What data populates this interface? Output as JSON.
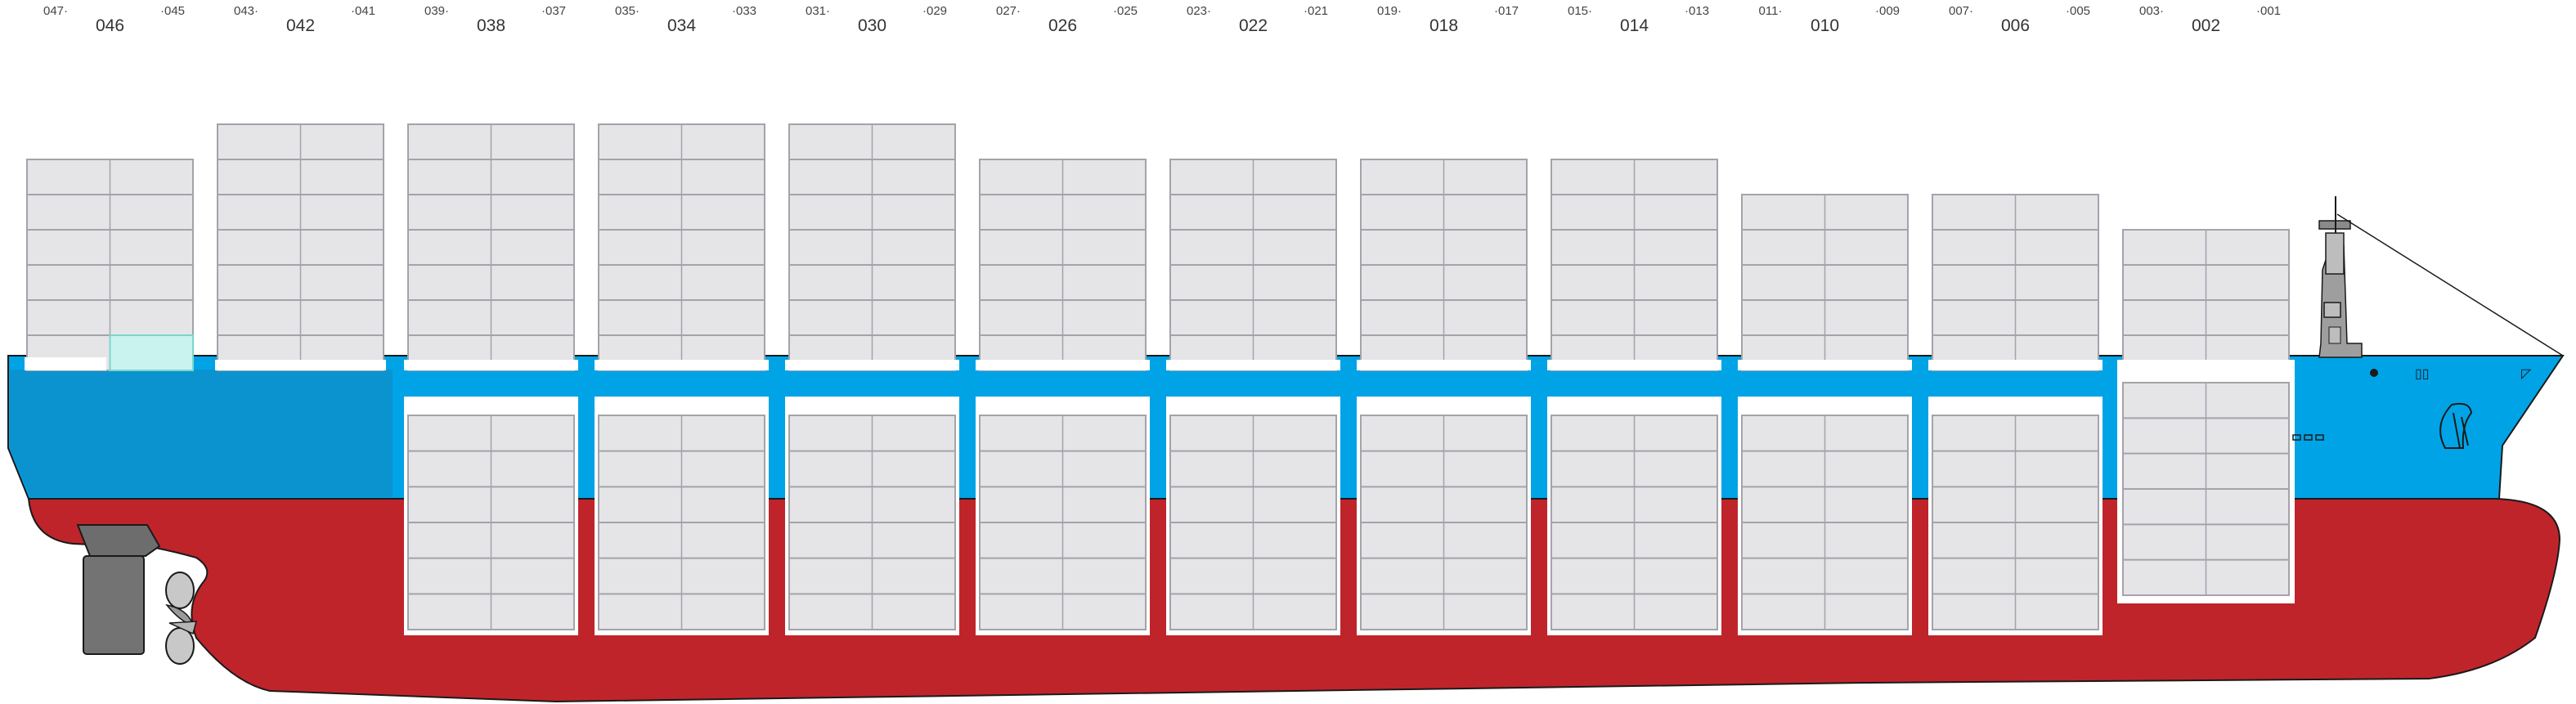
{
  "colors": {
    "hull_red": "#c0242b",
    "hull_blue": "#00a3e6",
    "container_fill": "#e5e5e8",
    "container_stroke": "#a3a3aa",
    "highlight_fill": "#c9f3ee",
    "highlight_stroke": "#7ad6cc",
    "outline": "#1a1a1a"
  },
  "bays": [
    {
      "id": "bay-046",
      "label": "046",
      "aft": "047",
      "fwd": "045",
      "deck_tiers": 6,
      "hold_tiers": 0,
      "highlight_cell": "deck-bottom-fwd"
    },
    {
      "id": "bay-042",
      "label": "042",
      "aft": "043",
      "fwd": "041",
      "deck_tiers": 7,
      "hold_tiers": 0
    },
    {
      "id": "bay-038",
      "label": "038",
      "aft": "039",
      "fwd": "037",
      "deck_tiers": 7,
      "hold_tiers": 6
    },
    {
      "id": "bay-034",
      "label": "034",
      "aft": "035",
      "fwd": "033",
      "deck_tiers": 7,
      "hold_tiers": 6
    },
    {
      "id": "bay-030",
      "label": "030",
      "aft": "031",
      "fwd": "029",
      "deck_tiers": 7,
      "hold_tiers": 6
    },
    {
      "id": "bay-026",
      "label": "026",
      "aft": "027",
      "fwd": "025",
      "deck_tiers": 6,
      "hold_tiers": 6
    },
    {
      "id": "bay-022",
      "label": "022",
      "aft": "023",
      "fwd": "021",
      "deck_tiers": 6,
      "hold_tiers": 6
    },
    {
      "id": "bay-018",
      "label": "018",
      "aft": "019",
      "fwd": "017",
      "deck_tiers": 6,
      "hold_tiers": 6
    },
    {
      "id": "bay-014",
      "label": "014",
      "aft": "015",
      "fwd": "013",
      "deck_tiers": 6,
      "hold_tiers": 6
    },
    {
      "id": "bay-010",
      "label": "010",
      "aft": "011",
      "fwd": "009",
      "deck_tiers": 5,
      "hold_tiers": 6
    },
    {
      "id": "bay-006",
      "label": "006",
      "aft": "007",
      "fwd": "005",
      "deck_tiers": 5,
      "hold_tiers": 6
    },
    {
      "id": "bay-002",
      "label": "002",
      "aft": "003",
      "fwd": "001",
      "deck_tiers": 4,
      "hold_tiers": 6
    }
  ]
}
